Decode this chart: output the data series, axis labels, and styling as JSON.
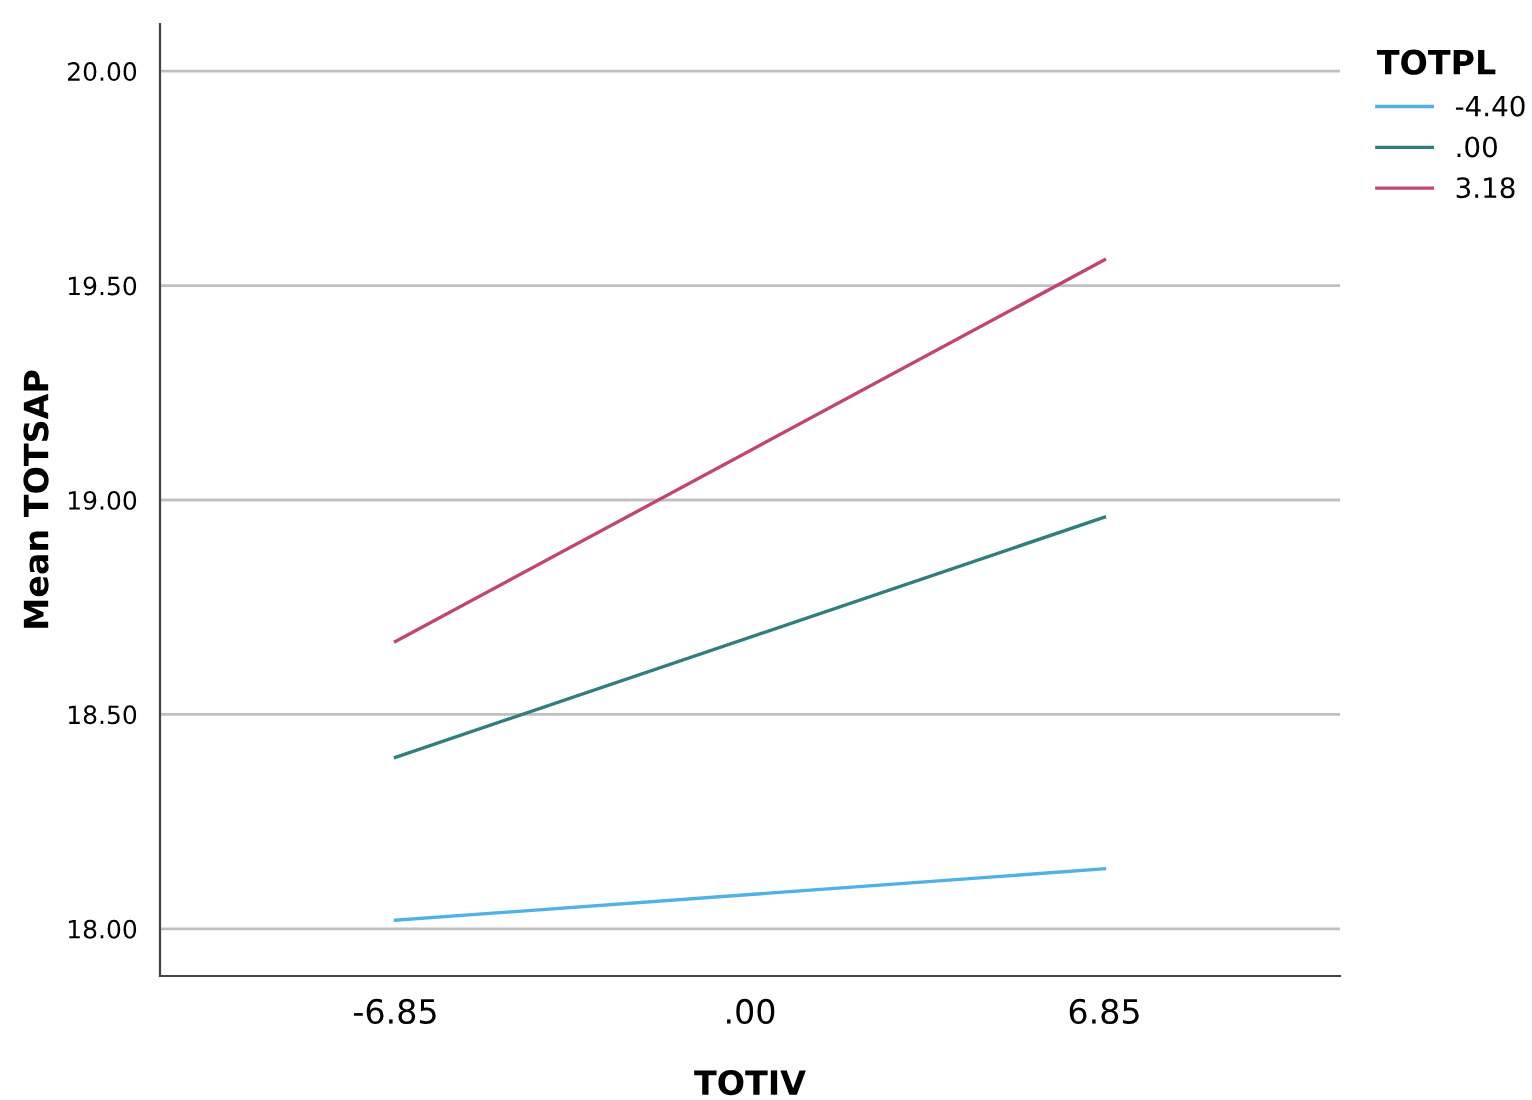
{
  "chart_data": {
    "type": "line",
    "xlabel": "TOTIV",
    "ylabel": "Mean TOTSAP",
    "legend_title": "TOTPL",
    "x": [
      -6.85,
      6.85
    ],
    "series": [
      {
        "name": "-4.40",
        "color": "#4fb0ea",
        "values": [
          18.02,
          18.14
        ]
      },
      {
        "name": ".00",
        "color": "#2f7f7c",
        "values": [
          18.4,
          18.96
        ]
      },
      {
        "name": "3.18",
        "color": "#c2456e",
        "values": [
          18.67,
          19.56
        ]
      }
    ],
    "xlim": [
      -11.4,
      11.4
    ],
    "xticks": [
      {
        "value": -6.85,
        "label": "-6.85"
      },
      {
        "value": 0,
        "label": ".00"
      },
      {
        "value": 6.85,
        "label": "6.85"
      }
    ],
    "ylim": [
      17.89,
      20.11
    ],
    "yticks": [
      {
        "value": 18,
        "label": "18.00"
      },
      {
        "value": 18.5,
        "label": "18.50"
      },
      {
        "value": 19,
        "label": "19.00"
      },
      {
        "value": 19.5,
        "label": "19.50"
      },
      {
        "value": 20,
        "label": "20.00"
      }
    ],
    "grid": "y",
    "legend": "right",
    "marker": "none",
    "line_style": "solid"
  }
}
